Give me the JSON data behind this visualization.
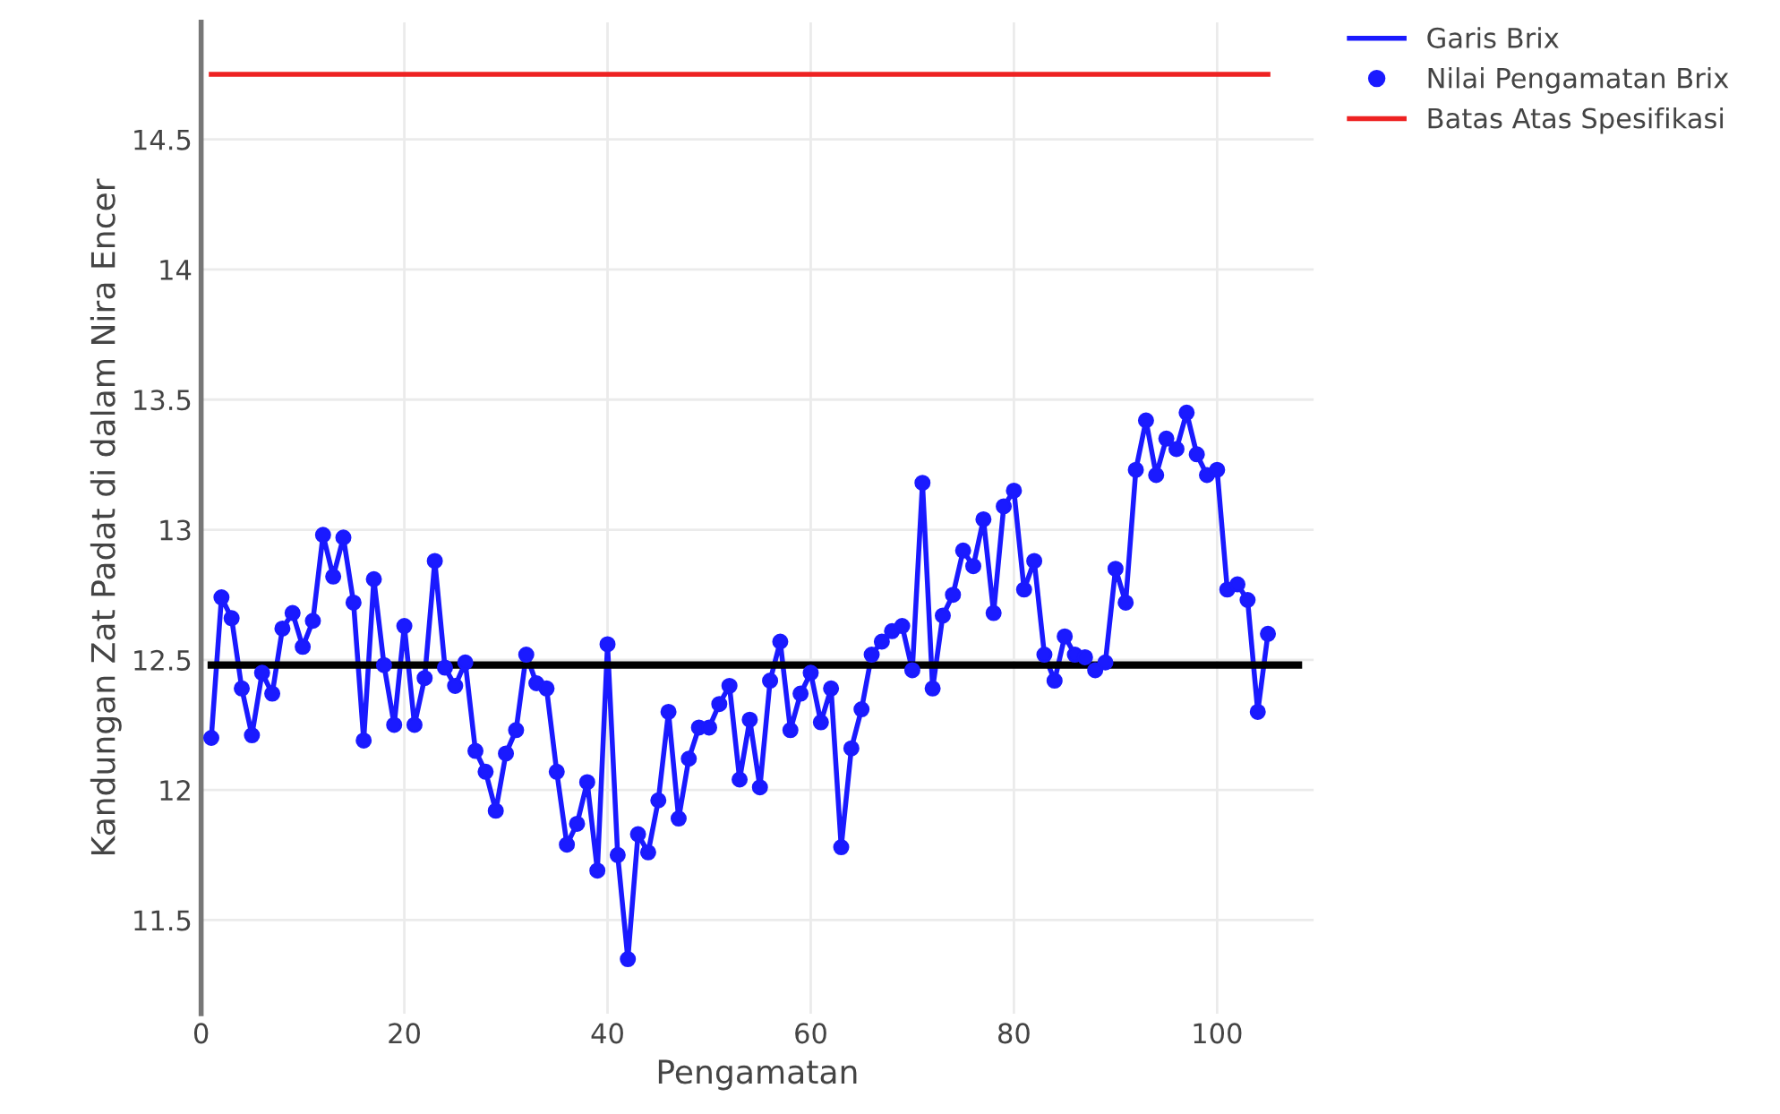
{
  "chart_data": {
    "type": "line",
    "xlabel": "Pengamatan",
    "ylabel": "Kandungan Zat Padat di dalam Nira Encer",
    "x": [
      1,
      2,
      3,
      4,
      5,
      6,
      7,
      8,
      9,
      10,
      11,
      12,
      13,
      14,
      15,
      16,
      17,
      18,
      19,
      20,
      21,
      22,
      23,
      24,
      25,
      26,
      27,
      28,
      29,
      30,
      31,
      32,
      33,
      34,
      35,
      36,
      37,
      38,
      39,
      40,
      41,
      42,
      43,
      44,
      45,
      46,
      47,
      48,
      49,
      50,
      51,
      52,
      53,
      54,
      55,
      56,
      57,
      58,
      59,
      60,
      61,
      62,
      63,
      64,
      65,
      66,
      67,
      68,
      69,
      70,
      71,
      72,
      73,
      74,
      75,
      76,
      77,
      78,
      79,
      80,
      81,
      82,
      83,
      84,
      85,
      86,
      87,
      88,
      89,
      90,
      91,
      92,
      93,
      94,
      95,
      96,
      97,
      98,
      99,
      100,
      101,
      102,
      103,
      104,
      105
    ],
    "series": [
      {
        "name": "Garis Brix",
        "color": "#1a1aff",
        "marker": "none",
        "values": [
          12.2,
          12.74,
          12.66,
          12.39,
          12.21,
          12.45,
          12.37,
          12.62,
          12.68,
          12.55,
          12.65,
          12.98,
          12.82,
          12.97,
          12.72,
          12.19,
          12.81,
          12.48,
          12.25,
          12.63,
          12.25,
          12.43,
          12.88,
          12.47,
          12.4,
          12.49,
          12.15,
          12.07,
          11.92,
          12.14,
          12.23,
          12.52,
          12.41,
          12.39,
          12.07,
          11.79,
          11.87,
          12.03,
          11.69,
          12.56,
          11.75,
          11.35,
          11.83,
          11.76,
          11.96,
          12.3,
          11.89,
          12.12,
          12.24,
          12.24,
          12.33,
          12.4,
          12.04,
          12.27,
          12.01,
          12.42,
          12.57,
          12.23,
          12.37,
          12.45,
          12.26,
          12.39,
          11.78,
          12.16,
          12.31,
          12.52,
          12.57,
          12.61,
          12.63,
          12.46,
          13.18,
          12.39,
          12.67,
          12.75,
          12.92,
          12.86,
          13.04,
          12.68,
          13.09,
          13.15,
          12.77,
          12.88,
          12.52,
          12.42,
          12.59,
          12.52,
          12.51,
          12.46,
          12.49,
          12.85,
          12.72,
          13.23,
          13.42,
          13.21,
          13.35,
          13.31,
          13.45,
          13.29,
          13.21,
          13.23,
          12.77,
          12.79,
          12.73,
          12.3,
          12.6
        ]
      },
      {
        "name": "Nilai Pengamatan Brix",
        "type": "scatter",
        "color": "#1a1aff",
        "marker": "circle",
        "values": [
          12.2,
          12.74,
          12.66,
          12.39,
          12.21,
          12.45,
          12.37,
          12.62,
          12.68,
          12.55,
          12.65,
          12.98,
          12.82,
          12.97,
          12.72,
          12.19,
          12.81,
          12.48,
          12.25,
          12.63,
          12.25,
          12.43,
          12.88,
          12.47,
          12.4,
          12.49,
          12.15,
          12.07,
          11.92,
          12.14,
          12.23,
          12.52,
          12.41,
          12.39,
          12.07,
          11.79,
          11.87,
          12.03,
          11.69,
          12.56,
          11.75,
          11.35,
          11.83,
          11.76,
          11.96,
          12.3,
          11.89,
          12.12,
          12.24,
          12.24,
          12.33,
          12.4,
          12.04,
          12.27,
          12.01,
          12.42,
          12.57,
          12.23,
          12.37,
          12.45,
          12.26,
          12.39,
          11.78,
          12.16,
          12.31,
          12.52,
          12.57,
          12.61,
          12.63,
          12.46,
          13.18,
          12.39,
          12.67,
          12.75,
          12.92,
          12.86,
          13.04,
          12.68,
          13.09,
          13.15,
          12.77,
          12.88,
          12.52,
          12.42,
          12.59,
          12.52,
          12.51,
          12.46,
          12.49,
          12.85,
          12.72,
          13.23,
          13.42,
          13.21,
          13.35,
          13.31,
          13.45,
          13.29,
          13.21,
          13.23,
          12.77,
          12.79,
          12.73,
          12.3,
          12.6
        ]
      },
      {
        "name": "Batas Atas Spesifikasi",
        "color": "#ee2222",
        "marker": "none",
        "x": [
          1,
          105
        ],
        "values": [
          14.75,
          14.75
        ]
      },
      {
        "color": "#000000",
        "marker": "none",
        "x": [
          1,
          108
        ],
        "values": [
          12.48,
          12.48
        ]
      }
    ],
    "xlim": [
      0,
      109.5
    ],
    "xticks": [
      0,
      20,
      40,
      60,
      80,
      100
    ],
    "ylim": [
      11.14,
      14.95
    ],
    "yticks": [
      11.5,
      12,
      12.5,
      13,
      13.5,
      14,
      14.5
    ],
    "grid": true,
    "legend": "top right",
    "line_style": "solid"
  }
}
